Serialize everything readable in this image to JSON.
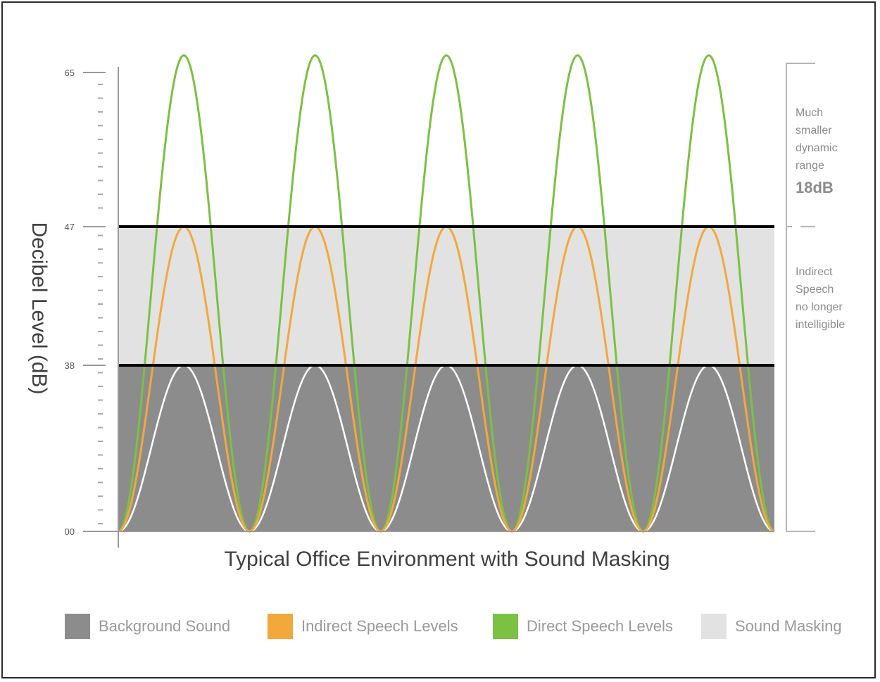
{
  "chart_data": {
    "type": "area",
    "title": "Typical Office Environment with Sound Masking",
    "xlabel": "",
    "ylabel": "Decibel Level (dB)",
    "y_ticks": [
      "00",
      "38",
      "47",
      "65"
    ],
    "y_tick_values": [
      0,
      38,
      47,
      65
    ],
    "ylim": [
      0,
      65
    ],
    "cycles": 5,
    "series": [
      {
        "name": "Background Sound",
        "peak_db": 38,
        "color": "#8c8c8c",
        "style": "filled"
      },
      {
        "name": "Indirect Speech Levels",
        "peak_db": 47,
        "color": "#f2a83a",
        "style": "line"
      },
      {
        "name": "Direct Speech Levels",
        "peak_db": 67,
        "color": "#7bc142",
        "style": "line"
      },
      {
        "name": "Sound Masking",
        "band_db": [
          38,
          47
        ],
        "color": "#e2e2e2",
        "style": "band"
      }
    ],
    "threshold_lines_db": [
      38,
      47
    ],
    "annotations": [
      {
        "lines": [
          "Much",
          "smaller",
          "dynamic",
          "range"
        ],
        "value": "18dB"
      },
      {
        "lines": [
          "Indirect",
          "Speech",
          "no longer",
          "intelligible"
        ]
      }
    ],
    "legend": {
      "position": "bottom",
      "items": [
        {
          "label": "Background Sound",
          "color": "#8c8c8c"
        },
        {
          "label": "Indirect Speech Levels",
          "color": "#f2a83a"
        },
        {
          "label": "Direct Speech Levels",
          "color": "#7bc142"
        },
        {
          "label": "Sound Masking",
          "color": "#e2e2e2"
        }
      ]
    }
  }
}
